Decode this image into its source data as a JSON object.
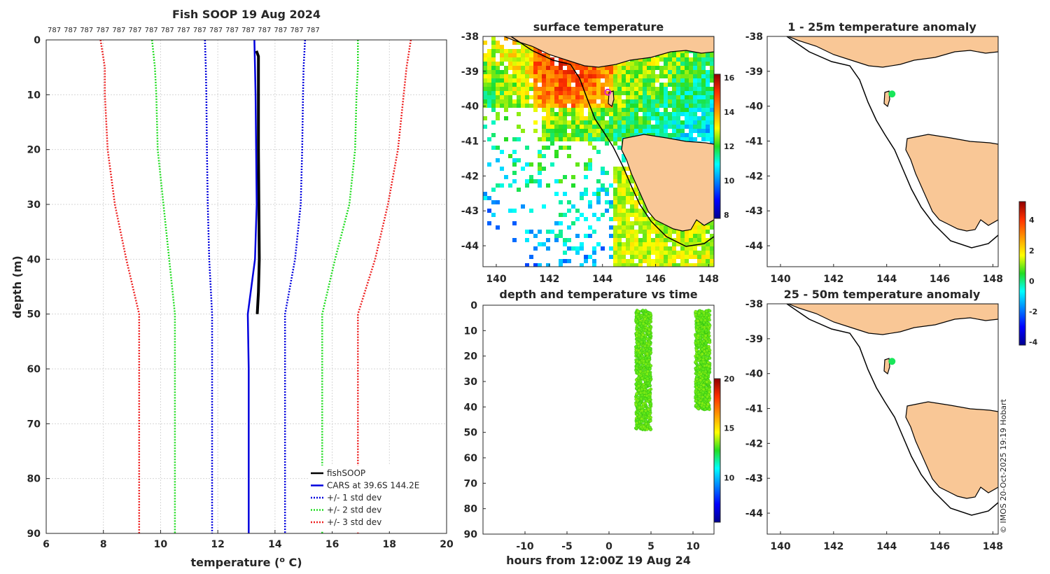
{
  "chart_data": [
    {
      "id": "profile",
      "type": "line",
      "title": "Fish SOOP 19 Aug 2024",
      "top_labels": [
        "787",
        "787",
        "787",
        "787",
        "787",
        "787",
        "787",
        "787",
        "787",
        "787",
        "787",
        "787",
        "787",
        "787",
        "787",
        "787",
        "787"
      ],
      "xlabel": "temperature (o C)",
      "xlabel_main": "temperature (",
      "xlabel_sup": "o",
      "xlabel_tail": " C)",
      "ylabel": "depth (m)",
      "xlim": [
        6,
        20
      ],
      "ylim": [
        0,
        90
      ],
      "xticks": [
        "6",
        "8",
        "10",
        "12",
        "14",
        "16",
        "18",
        "20"
      ],
      "yticks": [
        "0",
        "10",
        "20",
        "30",
        "40",
        "50",
        "60",
        "70",
        "80",
        "90"
      ],
      "depth": [
        0,
        5,
        10,
        20,
        30,
        40,
        50,
        60,
        70,
        80,
        90
      ],
      "series": [
        {
          "name": "fishSOOP",
          "color": "#000000",
          "style": "solid",
          "points": [
            [
              13.35,
              2
            ],
            [
              13.42,
              3
            ],
            [
              13.42,
              20
            ],
            [
              13.45,
              40
            ],
            [
              13.42,
              46
            ],
            [
              13.38,
              50
            ]
          ]
        },
        {
          "name": "CARS at 39.6S 144.2E",
          "color": "#0000dd",
          "style": "solid",
          "values": [
            13.28,
            13.3,
            13.32,
            13.34,
            13.36,
            13.3,
            13.05,
            13.08,
            13.08,
            13.08,
            13.08
          ]
        },
        {
          "name": "+/- 1 std dev",
          "color": "#0000dd",
          "style": "dotted",
          "lower": [
            11.55,
            11.58,
            11.6,
            11.62,
            11.65,
            11.7,
            11.8,
            11.8,
            11.8,
            11.8,
            11.8
          ],
          "upper": [
            15.05,
            15.0,
            14.98,
            14.95,
            14.9,
            14.7,
            14.35,
            14.35,
            14.35,
            14.35,
            14.35
          ]
        },
        {
          "name": "+/- 2 std dev",
          "color": "#22dd22",
          "style": "dotted",
          "lower": [
            9.7,
            9.8,
            9.85,
            9.9,
            10.1,
            10.3,
            10.5,
            10.5,
            10.5,
            10.5,
            10.5
          ],
          "upper": [
            16.9,
            16.9,
            16.85,
            16.8,
            16.6,
            16.1,
            15.65,
            15.65,
            15.65,
            15.65,
            15.65
          ]
        },
        {
          "name": "+/- 3 std dev",
          "color": "#ee2222",
          "style": "dotted",
          "lower": [
            7.9,
            8.05,
            8.05,
            8.15,
            8.4,
            8.8,
            9.25,
            9.25,
            9.25,
            9.25,
            9.25
          ],
          "upper": [
            18.75,
            18.6,
            18.5,
            18.3,
            17.95,
            17.5,
            16.9,
            16.9,
            16.9,
            16.9,
            16.9
          ]
        }
      ],
      "legend": [
        "fishSOOP",
        "CARS at 39.6S 144.2E",
        "+/- 1 std dev",
        "+/- 2 std dev",
        "+/- 3 std dev"
      ],
      "legend_position": "bottom-right"
    },
    {
      "id": "sst",
      "type": "heatmap",
      "title": "surface temperature",
      "xlim": [
        139.5,
        148.2
      ],
      "ylim": [
        -44.6,
        -38
      ],
      "xticks": [
        "140",
        "142",
        "144",
        "146",
        "148"
      ],
      "yticks": [
        "-38",
        "-39",
        "-40",
        "-41",
        "-42",
        "-43",
        "-44"
      ],
      "colorbar": {
        "range": [
          7.8,
          16.2
        ],
        "ticks": [
          "8",
          "10",
          "12",
          "14",
          "16"
        ]
      },
      "marker": {
        "lon": 144.2,
        "lat": -39.6,
        "color": "#e020c0"
      }
    },
    {
      "id": "anom1",
      "type": "scatter",
      "title": "1 - 25m temperature anomaly",
      "xlim": [
        139.5,
        148.2
      ],
      "ylim": [
        -44.6,
        -38
      ],
      "xticks": [
        "140",
        "142",
        "144",
        "146",
        "148"
      ],
      "yticks": [
        "-38",
        "-39",
        "-40",
        "-41",
        "-42",
        "-43",
        "-44"
      ],
      "points": [
        {
          "lon": 144.2,
          "lat": -39.65,
          "anomaly": 0.2
        }
      ]
    },
    {
      "id": "anom2",
      "type": "scatter",
      "title": "25 - 50m temperature anomaly",
      "xlim": [
        139.5,
        148.2
      ],
      "ylim": [
        -44.6,
        -38
      ],
      "xticks": [
        "140",
        "142",
        "144",
        "146",
        "148"
      ],
      "yticks": [
        "-38",
        "-39",
        "-40",
        "-41",
        "-42",
        "-43",
        "-44"
      ],
      "points": [
        {
          "lon": 144.2,
          "lat": -39.65,
          "anomaly": 0.2
        }
      ],
      "colorbar": {
        "range": [
          -4.2,
          5.2
        ],
        "ticks": [
          "4",
          "2",
          "0",
          "-2",
          "-4"
        ]
      }
    },
    {
      "id": "timeseries",
      "type": "scatter",
      "title": "depth and temperature vs time",
      "xlabel": "hours from 12:00Z 19 Aug 24",
      "xlim": [
        -15,
        12.5
      ],
      "ylim": [
        0,
        90
      ],
      "xticks": [
        "-10",
        "-5",
        "0",
        "5",
        "10"
      ],
      "yticks": [
        "0",
        "10",
        "20",
        "30",
        "40",
        "50",
        "60",
        "70",
        "80",
        "90"
      ],
      "clusters": [
        {
          "t_start": 3.2,
          "t_end": 5.0,
          "depth_min": 2,
          "depth_max": 49,
          "temp": 13.4
        },
        {
          "t_start": 10.3,
          "t_end": 12.0,
          "depth_min": 2,
          "depth_max": 41,
          "temp": 13.4
        }
      ],
      "colorbar": {
        "range": [
          5.5,
          20
        ],
        "ticks": [
          "20",
          "15",
          "10"
        ]
      }
    }
  ],
  "credit": "© IMOS 20-Oct-2025 19:19 Hobart",
  "colors": {
    "land": "#f9c796",
    "cars": "#0000dd",
    "std2": "#22dd22",
    "std3": "#ee2222",
    "marker": "#e020c0",
    "points": "#22dd22"
  }
}
